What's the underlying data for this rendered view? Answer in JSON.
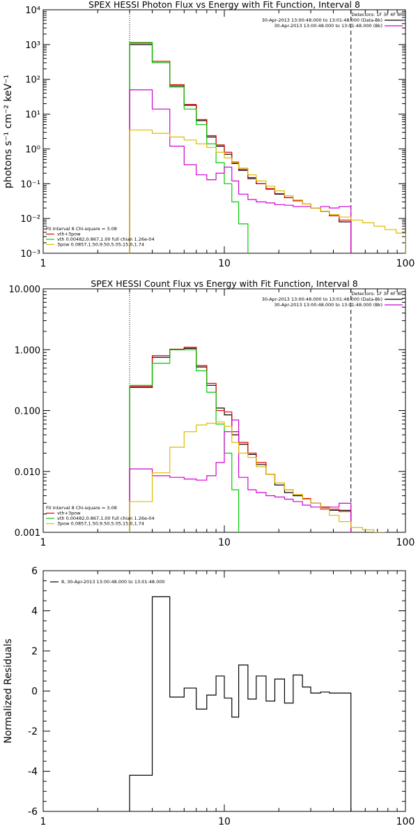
{
  "chart_data": [
    {
      "type": "line",
      "title": "SPEX HESSI Photon Flux vs Energy with Fit Function, Interval 8",
      "ylabel": "photons s⁻¹ cm⁻² keV⁻¹",
      "xscale": "log",
      "yscale": "log",
      "xlim": [
        1,
        100
      ],
      "ylim": [
        0.001,
        10000
      ],
      "xticks": [
        "1",
        "10",
        "100"
      ],
      "yticks": [
        "10⁻³",
        "10⁻²",
        "10⁻¹",
        "10⁰",
        "10¹",
        "10²",
        "10³",
        "10⁴"
      ],
      "vlines": [
        {
          "x": 3,
          "style": "dotted"
        },
        {
          "x": 50,
          "style": "dashed"
        }
      ],
      "legend_right": {
        "header": "Detectors: 1F 3F 4F 8F",
        "lines": [
          {
            "text": "30-Apr-2013 13:00:48.000 to 13:01:48.000 (Data-Bk)",
            "color": "#000000"
          },
          {
            "text": "30-Apr-2013 13:00:48.000 to 13:01:48.000 (Bk)",
            "color": "#d000d0"
          }
        ]
      },
      "legend_left": {
        "header": "Fit Interval  8    Chi-square = 3.08",
        "lines": [
          {
            "text": "vth+3pow",
            "color": "#e00000"
          },
          {
            "text": "vth 0.00482,0.867,1.00   full chian 1.26e-04",
            "color": "#00cc00"
          },
          {
            "text": "3pow 0.0857,1.50,9.50,5.05,15.0,1.74",
            "color": "#ddbb00"
          }
        ]
      },
      "series": [
        {
          "color": "#000000",
          "edges": [
            3,
            4,
            5,
            6,
            7,
            8,
            9,
            10,
            11,
            12,
            13.5,
            15,
            17,
            19,
            21.5,
            24,
            27,
            30,
            34,
            38,
            43,
            50
          ],
          "values": [
            1000,
            300,
            65,
            18,
            6.5,
            2.2,
            1.2,
            0.7,
            0.38,
            0.24,
            0.14,
            0.1,
            0.07,
            0.05,
            0.04,
            0.032,
            0.026,
            0.02,
            0.016,
            0.012,
            0.008
          ]
        },
        {
          "color": "#e00000",
          "edges": [
            3,
            4,
            5,
            6,
            7,
            8,
            9,
            10,
            11,
            12,
            13.5,
            15,
            17,
            19,
            21.5,
            24,
            27,
            30,
            34,
            38,
            43,
            50
          ],
          "values": [
            1100,
            330,
            70,
            19,
            7,
            2.4,
            1.3,
            0.8,
            0.42,
            0.26,
            0.15,
            0.1,
            0.072,
            0.052,
            0.04,
            0.032,
            0.026,
            0.02,
            0.016,
            0.012,
            0.009
          ]
        },
        {
          "color": "#00cc00",
          "edges": [
            3,
            4,
            5,
            6,
            7,
            8,
            9,
            10,
            11,
            12,
            13.5,
            15
          ],
          "values": [
            1150,
            300,
            60,
            14,
            5,
            1.4,
            0.4,
            0.1,
            0.03,
            0.007,
            0.0008
          ]
        },
        {
          "color": "#d000d0",
          "edges": [
            3,
            4,
            5,
            6,
            7,
            8,
            9,
            10,
            11,
            12,
            13.5,
            15,
            17,
            19,
            21.5,
            24,
            27,
            30,
            34,
            38,
            43,
            50
          ],
          "values": [
            50,
            14,
            1.2,
            0.35,
            0.18,
            0.13,
            0.2,
            0.3,
            0.12,
            0.05,
            0.035,
            0.03,
            0.028,
            0.025,
            0.024,
            0.022,
            0.022,
            0.02,
            0.022,
            0.02,
            0.022
          ]
        },
        {
          "color": "#ddbb00",
          "edges": [
            3,
            4,
            5,
            6,
            7,
            8,
            9,
            10,
            11,
            12,
            13.5,
            15,
            17,
            19,
            21.5,
            24,
            27,
            30,
            34,
            38,
            43,
            50,
            58,
            67,
            77,
            89,
            100
          ],
          "values": [
            3.5,
            2.8,
            2.2,
            1.8,
            1.4,
            1.1,
            0.8,
            0.55,
            0.4,
            0.28,
            0.18,
            0.12,
            0.085,
            0.062,
            0.045,
            0.034,
            0.026,
            0.02,
            0.016,
            0.013,
            0.011,
            0.009,
            0.0075,
            0.006,
            0.0048,
            0.0038
          ]
        }
      ]
    },
    {
      "type": "line",
      "title": "SPEX HESSI Count Flux vs Energy with Fit Function, Interval 8",
      "ylabel": "",
      "xscale": "log",
      "yscale": "log",
      "xlim": [
        1,
        100
      ],
      "ylim": [
        0.001,
        10
      ],
      "xticks": [
        "1",
        "10",
        "100"
      ],
      "yticks": [
        "0.001",
        "0.010",
        "0.100",
        "1.000",
        "10.000"
      ],
      "vlines": [
        {
          "x": 3,
          "style": "dotted"
        },
        {
          "x": 50,
          "style": "dashed"
        }
      ],
      "legend_right": {
        "header": "Detectors: 1F 3F 4F 8F",
        "lines": [
          {
            "text": "30-Apr-2013 13:00:48.000 to 13:01:48.000 (Data-Bk)",
            "color": "#000000"
          },
          {
            "text": "30-Apr-2013 13:00:48.000 to 13:01:48.000 (Bk)",
            "color": "#d000d0"
          }
        ]
      },
      "legend_left": {
        "header": "Fit Interval  8    Chi-square = 3.08",
        "lines": [
          {
            "text": "vth+3pow",
            "color": "#e00000"
          },
          {
            "text": "vth 0.00482,0.867,1.00   full chian 1.26e-04",
            "color": "#00cc00"
          },
          {
            "text": "3pow 0.0857,1.50,9.50,5.05,15.0,1.74",
            "color": "#ddbb00"
          }
        ]
      },
      "series": [
        {
          "color": "#000000",
          "edges": [
            3,
            4,
            5,
            6,
            7,
            8,
            9,
            10,
            11,
            12,
            13.5,
            15,
            17,
            19,
            21.5,
            24,
            27,
            30,
            34,
            38,
            43,
            50
          ],
          "values": [
            0.24,
            0.75,
            1.0,
            1.05,
            0.52,
            0.26,
            0.11,
            0.085,
            0.04,
            0.028,
            0.019,
            0.013,
            0.009,
            0.006,
            0.0045,
            0.004,
            0.0035,
            0.003,
            0.0026,
            0.0023,
            0.0023
          ]
        },
        {
          "color": "#e00000",
          "edges": [
            3,
            4,
            5,
            6,
            7,
            8,
            9,
            10,
            11,
            12,
            13.5,
            15,
            17,
            19,
            21.5,
            24,
            27,
            30,
            34,
            38,
            43,
            50
          ],
          "values": [
            0.25,
            0.8,
            1.02,
            1.1,
            0.55,
            0.28,
            0.1,
            0.095,
            0.045,
            0.03,
            0.02,
            0.014,
            0.009,
            0.0065,
            0.005,
            0.0042,
            0.0036,
            0.003,
            0.0026,
            0.0024,
            0.0022
          ]
        },
        {
          "color": "#00cc00",
          "edges": [
            3,
            4,
            5,
            6,
            7,
            8,
            9,
            10,
            11,
            12,
            13.5
          ],
          "values": [
            0.26,
            0.6,
            1.0,
            1.0,
            0.45,
            0.2,
            0.06,
            0.02,
            0.005,
            0.0008
          ]
        },
        {
          "color": "#d000d0",
          "edges": [
            3,
            4,
            5,
            6,
            7,
            8,
            9,
            10,
            11,
            12,
            13.5,
            15,
            17,
            19,
            21.5,
            24,
            27,
            30,
            34,
            38,
            43,
            50
          ],
          "values": [
            0.011,
            0.0085,
            0.008,
            0.0075,
            0.0072,
            0.0085,
            0.014,
            0.045,
            0.07,
            0.008,
            0.005,
            0.0045,
            0.004,
            0.0038,
            0.0035,
            0.0032,
            0.0028,
            0.0026,
            0.0024,
            0.0026,
            0.003
          ]
        },
        {
          "color": "#ddbb00",
          "edges": [
            3,
            4,
            5,
            6,
            7,
            8,
            9,
            10,
            11,
            12,
            13.5,
            15,
            17,
            19,
            21.5,
            24,
            27,
            30,
            34,
            38,
            43,
            50,
            58,
            67,
            77
          ],
          "values": [
            0.0032,
            0.0095,
            0.025,
            0.045,
            0.058,
            0.062,
            0.065,
            0.055,
            0.03,
            0.02,
            0.017,
            0.012,
            0.009,
            0.0065,
            0.005,
            0.0042,
            0.0035,
            0.003,
            0.0025,
            0.0019,
            0.0015,
            0.0012,
            0.0011,
            0.001
          ]
        }
      ]
    },
    {
      "type": "line",
      "title": "",
      "ylabel": "Normalized Residuals",
      "xscale": "log",
      "yscale": "linear",
      "xlim": [
        1,
        100
      ],
      "ylim": [
        -6,
        6
      ],
      "xticks": [
        "1",
        "10",
        "100"
      ],
      "yticks": [
        "-6",
        "-4",
        "-2",
        "0",
        "2",
        "4",
        "6"
      ],
      "legend_left": {
        "header": "",
        "lines": [
          {
            "text": "8, 30-Apr-2013 13:00:48.000 to 13:01:48.000",
            "color": "#000000"
          }
        ]
      },
      "series": [
        {
          "color": "#000000",
          "edges": [
            3,
            4,
            5,
            6,
            7,
            8,
            9,
            10,
            11,
            12,
            13.5,
            15,
            17,
            19,
            21.5,
            24,
            27,
            30,
            34,
            38,
            43,
            50
          ],
          "values": [
            -4.2,
            4.7,
            -0.3,
            0.15,
            -0.9,
            -0.2,
            0.75,
            -0.35,
            -1.3,
            1.3,
            -0.4,
            0.75,
            -0.5,
            0.6,
            -0.6,
            0.8,
            0.2,
            -0.1,
            -0.05,
            -0.1,
            -0.1
          ]
        }
      ]
    }
  ]
}
